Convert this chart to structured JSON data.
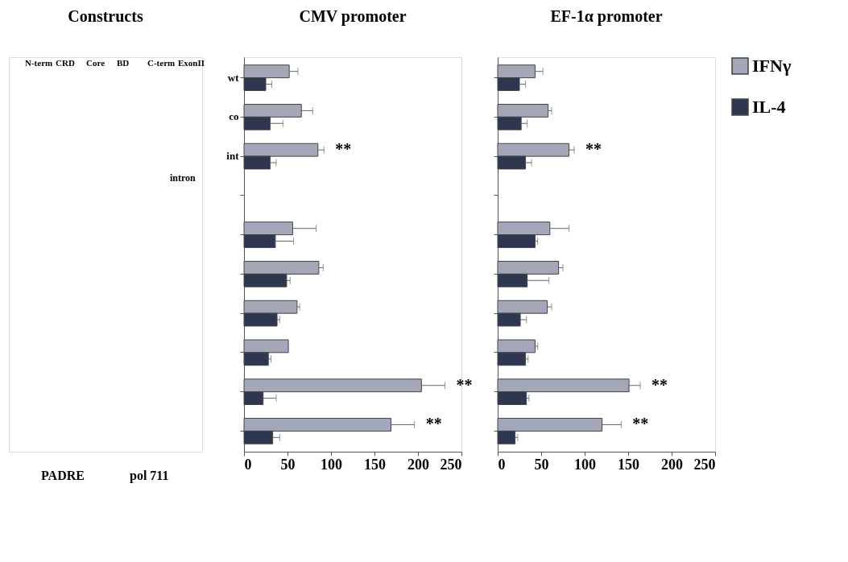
{
  "chart_data": [
    {
      "type": "other",
      "title": "Constructs",
      "annotations": [
        "N-term",
        "CRD",
        "Core",
        "BD",
        "C-term",
        "ExonII",
        "intron",
        "PADRE",
        "pol 711"
      ]
    },
    {
      "type": "bar",
      "orientation": "horizontal",
      "title": "CMV promoter",
      "categories": [
        "wt",
        "co",
        "int",
        null,
        null,
        null,
        null,
        null,
        null,
        null
      ],
      "xlim": [
        0,
        250
      ],
      "xticks": [
        0,
        50,
        100,
        150,
        200,
        250
      ],
      "grid": false,
      "series": [
        {
          "color": "#a3a7b8",
          "values": [
            52,
            66,
            85,
            null,
            56,
            86,
            61,
            51,
            204,
            169
          ],
          "errors": [
            [
              52,
              62
            ],
            [
              66,
              79
            ],
            [
              85,
              92
            ],
            null,
            [
              56,
              83
            ],
            [
              86,
              91
            ],
            [
              61,
              64
            ],
            null,
            [
              204,
              231
            ],
            [
              169,
              196
            ]
          ],
          "value_labels": [
            null,
            null,
            "**",
            null,
            null,
            null,
            null,
            null,
            "**",
            "**"
          ]
        },
        {
          "color": "#2f3650",
          "values": [
            25,
            30,
            30,
            null,
            36,
            49,
            38,
            28,
            22,
            33
          ],
          "errors": [
            [
              25,
              32
            ],
            [
              30,
              45
            ],
            [
              30,
              37
            ],
            null,
            [
              36,
              57
            ],
            [
              49,
              53
            ],
            [
              38,
              41
            ],
            [
              28,
              31
            ],
            [
              22,
              37
            ],
            [
              33,
              41
            ]
          ]
        }
      ]
    },
    {
      "type": "bar",
      "orientation": "horizontal",
      "title": "EF-1α promoter",
      "categories": [
        null,
        null,
        null,
        null,
        null,
        null,
        null,
        null,
        null,
        null
      ],
      "tick_labels": "x",
      "xlim": [
        0,
        250
      ],
      "xticks": [
        0,
        50,
        100,
        150,
        200,
        250
      ],
      "grid": false,
      "legend": "right",
      "series": [
        {
          "name": "IFNγ",
          "color": "#a3a7b8",
          "values": [
            43,
            58,
            82,
            null,
            60,
            70,
            57,
            43,
            151,
            120
          ],
          "errors": [
            [
              43,
              52
            ],
            [
              58,
              62
            ],
            [
              82,
              88
            ],
            null,
            [
              60,
              82
            ],
            [
              70,
              75
            ],
            [
              57,
              62
            ],
            [
              43,
              46
            ],
            [
              151,
              164
            ],
            [
              120,
              142
            ]
          ],
          "value_labels": [
            null,
            null,
            "**",
            null,
            null,
            null,
            null,
            null,
            "**",
            "**"
          ]
        },
        {
          "name": "IL-4",
          "color": "#2f3650",
          "values": [
            25,
            27,
            32,
            null,
            43,
            34,
            26,
            32,
            33,
            20
          ],
          "errors": [
            [
              25,
              32
            ],
            [
              27,
              34
            ],
            [
              32,
              39
            ],
            null,
            [
              43,
              46
            ],
            [
              34,
              59
            ],
            [
              26,
              33
            ],
            [
              32,
              35
            ],
            [
              33,
              36
            ],
            [
              20,
              23
            ]
          ]
        }
      ]
    }
  ]
}
